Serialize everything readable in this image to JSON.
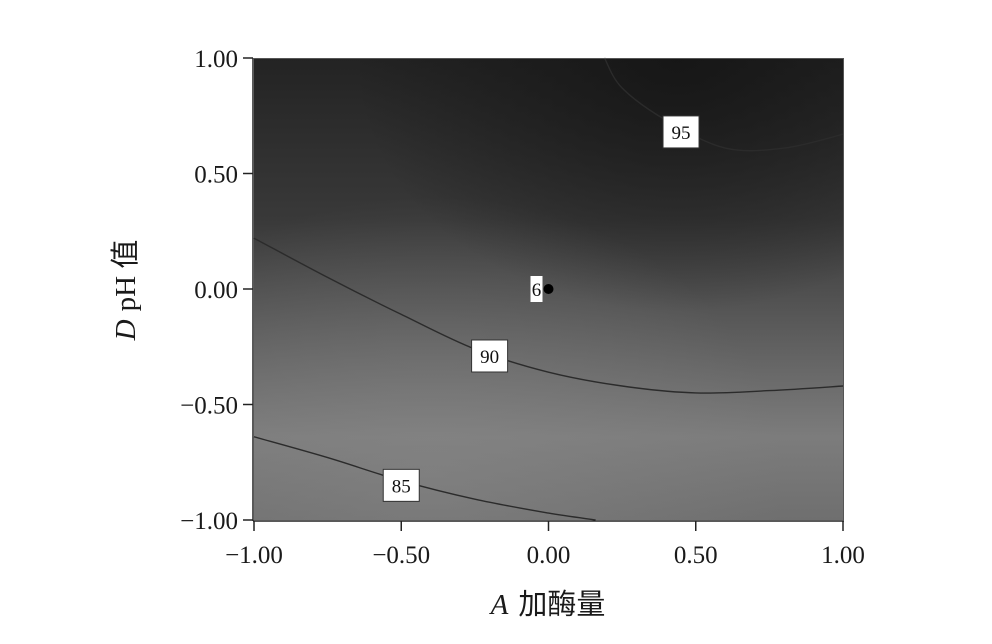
{
  "chart_data": {
    "type": "contour",
    "xlabel_var": "A",
    "xlabel_text": "加酶量",
    "ylabel_var": "D",
    "ylabel_text": "pH 值",
    "xlim": [
      -1.0,
      1.0
    ],
    "ylim": [
      -1.0,
      1.0
    ],
    "xticks": [
      "−1.00",
      "−0.50",
      "0.00",
      "0.50",
      "1.00"
    ],
    "xtick_values": [
      -1.0,
      -0.5,
      0.0,
      0.5,
      1.0
    ],
    "yticks": [
      "−1.00",
      "−0.50",
      "0.00",
      "0.50",
      "1.00"
    ],
    "ytick_values": [
      -1.0,
      -0.5,
      0.0,
      0.5,
      1.0
    ],
    "contours": [
      {
        "level": "85",
        "label_at": [
          -0.5,
          -0.85
        ],
        "points": [
          [
            -1.0,
            -0.64
          ],
          [
            -0.75,
            -0.73
          ],
          [
            -0.5,
            -0.83
          ],
          [
            -0.25,
            -0.91
          ],
          [
            0.0,
            -0.97
          ],
          [
            0.16,
            -1.0
          ]
        ]
      },
      {
        "level": "90",
        "label_at": [
          -0.2,
          -0.29
        ],
        "points": [
          [
            -1.0,
            0.22
          ],
          [
            -0.75,
            0.05
          ],
          [
            -0.5,
            -0.11
          ],
          [
            -0.25,
            -0.26
          ],
          [
            0.0,
            -0.36
          ],
          [
            0.25,
            -0.42
          ],
          [
            0.5,
            -0.45
          ],
          [
            0.75,
            -0.44
          ],
          [
            1.0,
            -0.42
          ]
        ]
      },
      {
        "level": "95",
        "label_at": [
          0.45,
          0.68
        ],
        "points": [
          [
            0.19,
            1.0
          ],
          [
            0.25,
            0.87
          ],
          [
            0.4,
            0.73
          ],
          [
            0.6,
            0.61
          ],
          [
            0.8,
            0.61
          ],
          [
            1.0,
            0.67
          ]
        ]
      }
    ],
    "design_point": {
      "x": 0.0,
      "y": 0.0,
      "label": "6"
    }
  }
}
